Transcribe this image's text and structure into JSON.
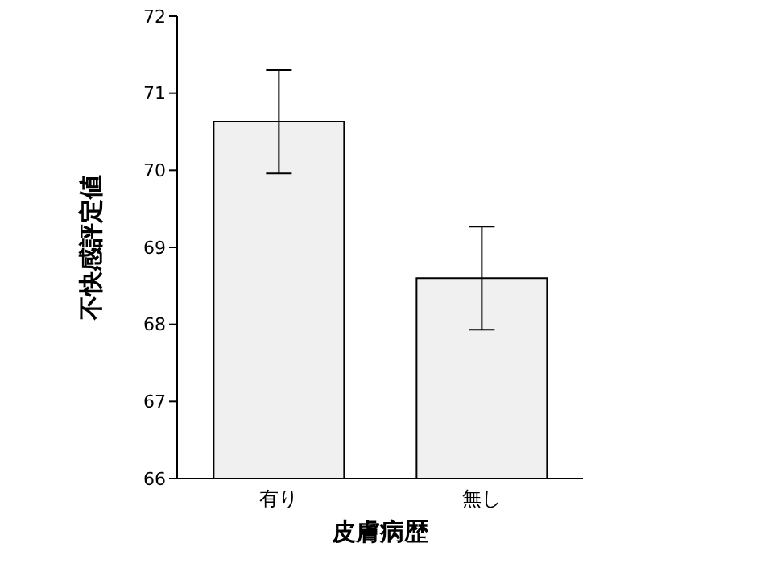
{
  "chart_data": {
    "type": "bar",
    "xlabel": "皮膚病歴",
    "ylabel": "不快感評定値",
    "categories": [
      "有り",
      "無し"
    ],
    "values": [
      70.63,
      68.6
    ],
    "errors": [
      0.67,
      0.67
    ],
    "color": "#f0f0f0",
    "ylim": [
      66,
      72
    ],
    "yticks": [
      66,
      67,
      68,
      69,
      70,
      71,
      72
    ],
    "grid": false,
    "legend": false
  }
}
